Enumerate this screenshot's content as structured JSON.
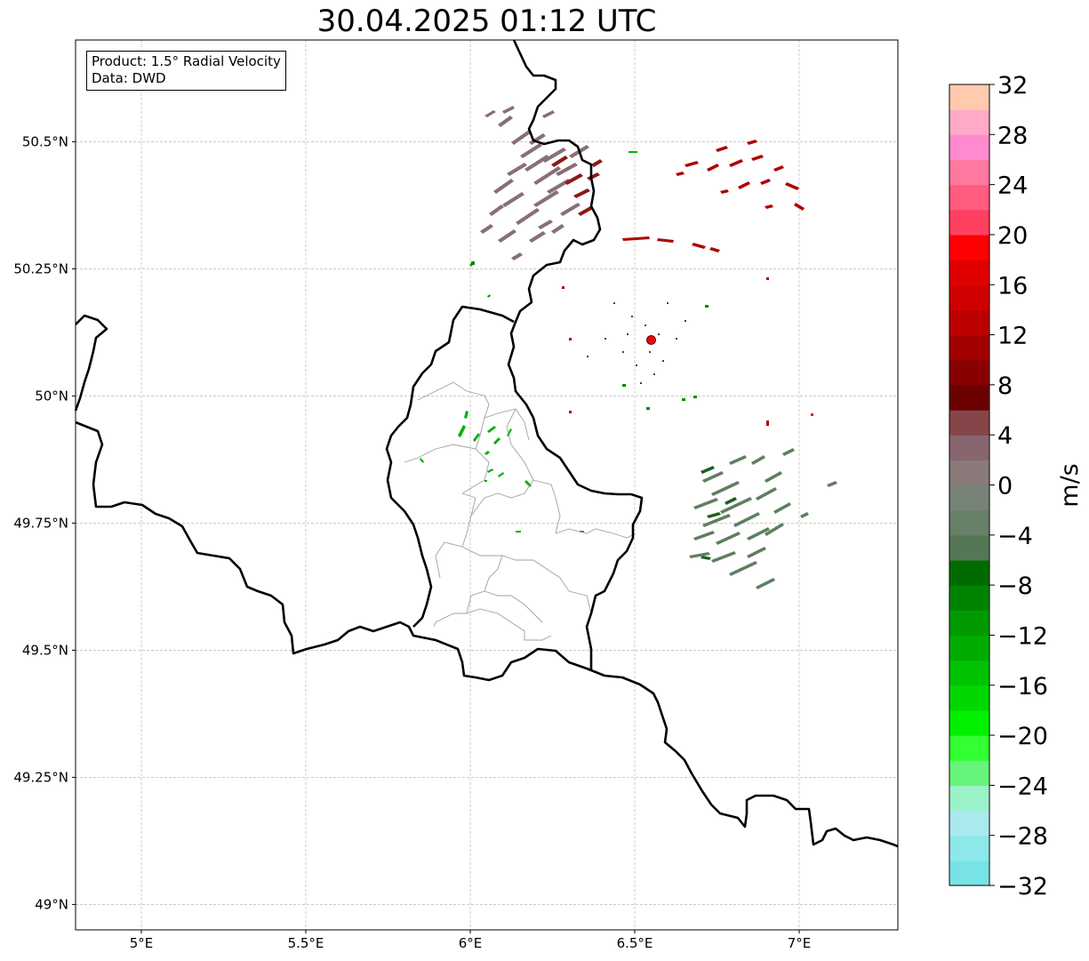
{
  "title": "30.04.2025 01:12 UTC",
  "info": {
    "product_line": "Product: 1.5° Radial Velocity",
    "data_line": "Data: DWD"
  },
  "map": {
    "lon_range": [
      4.8,
      7.3
    ],
    "lat_range": [
      48.95,
      50.7
    ],
    "lon_ticks": [
      {
        "value": 5.0,
        "label": "5°E"
      },
      {
        "value": 5.5,
        "label": "5.5°E"
      },
      {
        "value": 6.0,
        "label": "6°E"
      },
      {
        "value": 6.5,
        "label": "6.5°E"
      },
      {
        "value": 7.0,
        "label": "7°E"
      }
    ],
    "lat_ticks": [
      {
        "value": 49.0,
        "label": "49°N"
      },
      {
        "value": 49.25,
        "label": "49.25°N"
      },
      {
        "value": 49.5,
        "label": "49.5°N"
      },
      {
        "value": 49.75,
        "label": "49.75°N"
      },
      {
        "value": 50.0,
        "label": "50°N"
      },
      {
        "value": 50.25,
        "label": "50.25°N"
      },
      {
        "value": 50.5,
        "label": "50.5°N"
      }
    ],
    "radar_site": {
      "lon": 6.55,
      "lat": 50.11,
      "color": "#ff0000"
    },
    "gridlines": true
  },
  "colorbar": {
    "label": "m/s",
    "min": -32,
    "max": 32,
    "tick_labels": [
      "32",
      "28",
      "24",
      "20",
      "16",
      "12",
      "8",
      "4",
      "0",
      "−4",
      "−8",
      "−12",
      "−16",
      "−20",
      "−24",
      "−28",
      "−32"
    ],
    "tick_values": [
      32,
      28,
      24,
      20,
      16,
      12,
      8,
      4,
      0,
      -4,
      -8,
      -12,
      -16,
      -20,
      -24,
      -28,
      -32
    ],
    "colors_bottom_to_top": [
      "#77e3e6",
      "#8ee8ea",
      "#aae9ee",
      "#9af2c8",
      "#66f57a",
      "#33ff33",
      "#00f000",
      "#00d800",
      "#00c200",
      "#00ac00",
      "#009a00",
      "#008400",
      "#006c00",
      "#557755",
      "#687f68",
      "#788378",
      "#8a7a7a",
      "#876670",
      "#854549",
      "#6b0000",
      "#880000",
      "#a30000",
      "#bc0000",
      "#d00000",
      "#e00000",
      "#ff0000",
      "#ff4060",
      "#ff5c80",
      "#ff78a0",
      "#ff8ad0",
      "#ffaac8",
      "#ffcaad"
    ]
  },
  "echo_colors": {
    "outbound_gray": "#886f77",
    "outbound_red": "#b10000",
    "inbound_green": "#5f7f5f",
    "inbound_bright": "#00b000"
  }
}
